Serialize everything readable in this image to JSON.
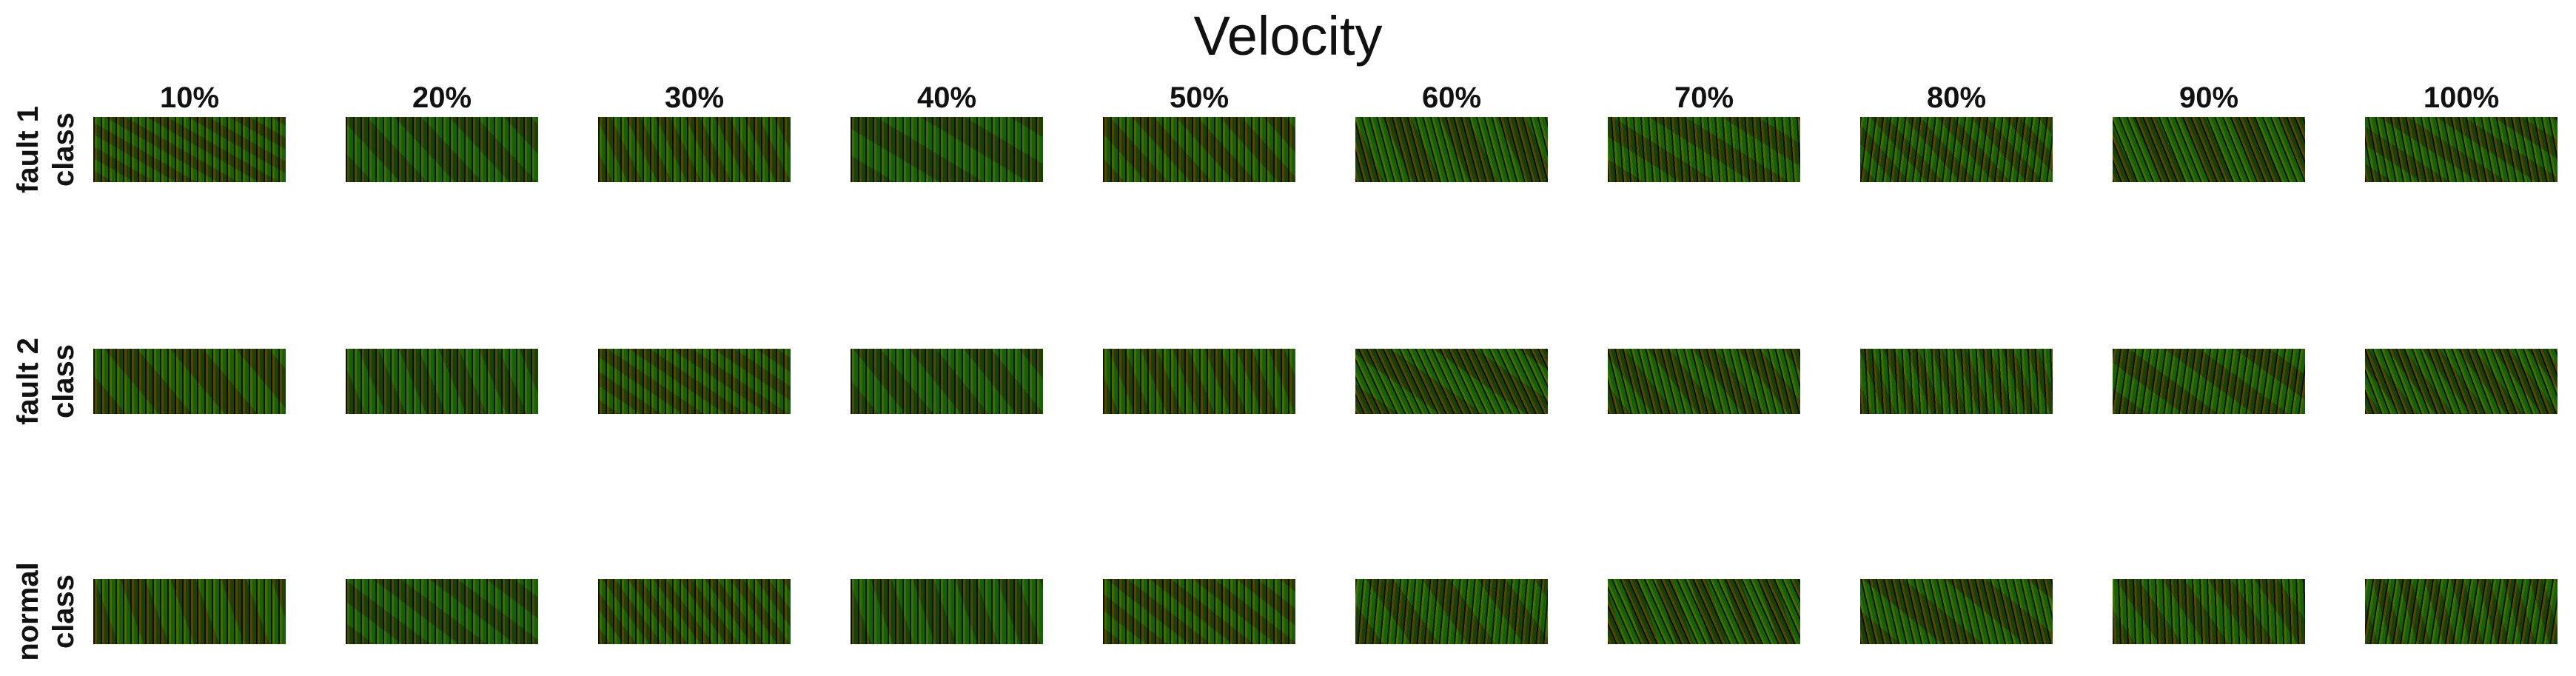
{
  "title": "Velocity",
  "columns": [
    "10%",
    "20%",
    "30%",
    "40%",
    "50%",
    "60%",
    "70%",
    "80%",
    "90%",
    "100%"
  ],
  "rows": [
    {
      "label_line1": "fault 1",
      "label_line2": "class"
    },
    {
      "label_line1": "fault 2",
      "label_line2": "class"
    },
    {
      "label_line1": "normal",
      "label_line2": "class"
    }
  ],
  "colors": {
    "red": "#c8401c",
    "green": "#3fb52a",
    "yellow": "#d6c82a",
    "dark": "#1e2a0c"
  }
}
